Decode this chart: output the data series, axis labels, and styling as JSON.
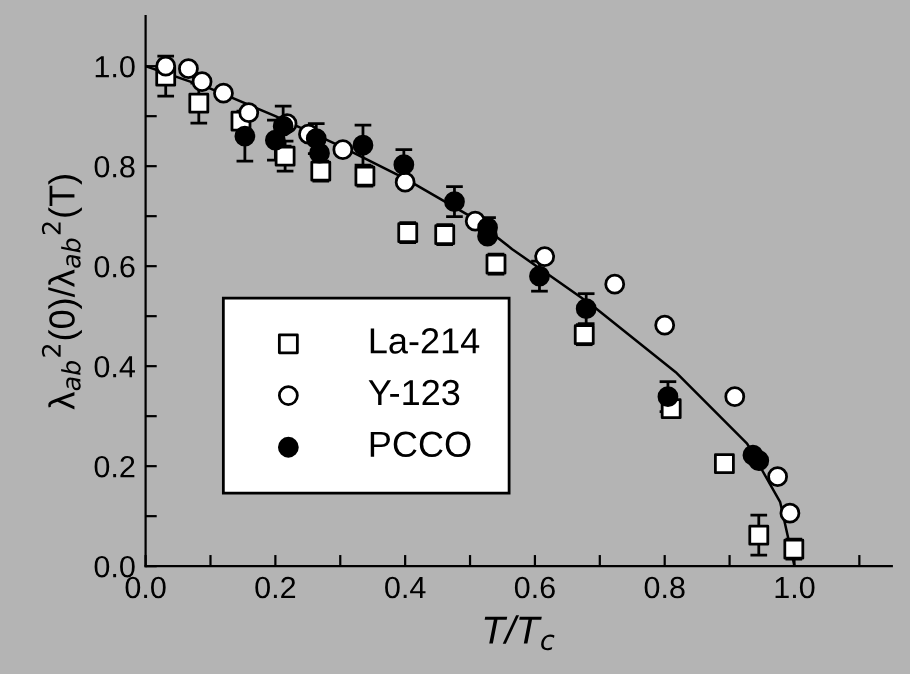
{
  "chart_data": {
    "type": "scatter",
    "xlabel": "T/T$_{c}$",
    "ylabel": "λ$_{ab}$$^{2}$(0)/λ$_{ab}$$^{2}$(T)",
    "xlim": [
      0,
      1.15
    ],
    "ylim": [
      0,
      1.1
    ],
    "xticks": [
      {
        "value": 0,
        "label": "0.0"
      },
      {
        "value": 0.1,
        "label": null
      },
      {
        "value": 0.2,
        "label": "0.2"
      },
      {
        "value": 0.3,
        "label": null
      },
      {
        "value": 0.4,
        "label": "0.4"
      },
      {
        "value": 0.5,
        "label": null
      },
      {
        "value": 0.6,
        "label": "0.6"
      },
      {
        "value": 0.7,
        "label": null
      },
      {
        "value": 0.8,
        "label": "0.8"
      },
      {
        "value": 0.9,
        "label": null
      },
      {
        "value": 1.0,
        "label": "1.0"
      },
      {
        "value": 1.1,
        "label": null
      }
    ],
    "yticks": [
      {
        "value": 0,
        "label": "0.0"
      },
      {
        "value": 0.1,
        "label": null
      },
      {
        "value": 0.2,
        "label": "0.2"
      },
      {
        "value": 0.3,
        "label": null
      },
      {
        "value": 0.4,
        "label": "0.4"
      },
      {
        "value": 0.5,
        "label": null
      },
      {
        "value": 0.6,
        "label": "0.6"
      },
      {
        "value": 0.7,
        "label": null
      },
      {
        "value": 0.8,
        "label": "0.8"
      },
      {
        "value": 0.9,
        "label": null
      },
      {
        "value": 1.0,
        "label": "1.0"
      }
    ],
    "legend": "lower left",
    "series": [
      {
        "name": "La-214",
        "marker": "square",
        "color": "#ffffff",
        "x": [
          0.031,
          0.082,
          0.147,
          0.215,
          0.27,
          0.338,
          0.404,
          0.461,
          0.54,
          0.676,
          0.81,
          0.892,
          0.945,
          0.999
        ],
        "values": [
          0.98,
          0.926,
          0.89,
          0.82,
          0.79,
          0.78,
          0.667,
          0.663,
          0.604,
          0.463,
          0.315,
          0.205,
          0.062,
          0.034
        ],
        "errors": [
          0.04,
          0.04,
          null,
          0.03,
          0.02,
          0.02,
          0.02,
          0.02,
          0.02,
          0.02,
          null,
          null,
          0.04,
          0.02
        ]
      },
      {
        "name": "Y-123",
        "marker": "circle",
        "color": "#ffffff",
        "x": [
          0.031,
          0.066,
          0.087,
          0.12,
          0.159,
          0.218,
          0.251,
          0.304,
          0.4,
          0.508,
          0.615,
          0.723,
          0.8,
          0.908,
          0.974,
          0.993
        ],
        "values": [
          1.0,
          0.995,
          0.969,
          0.946,
          0.907,
          0.885,
          0.864,
          0.833,
          0.768,
          0.69,
          0.619,
          0.564,
          0.482,
          0.339,
          0.179,
          0.106
        ]
      },
      {
        "name": "PCCO",
        "marker": "circle",
        "color": "#000000",
        "x": [
          0.153,
          0.2,
          0.212,
          0.263,
          0.268,
          0.335,
          0.398,
          0.476,
          0.527,
          0.527,
          0.607,
          0.679,
          0.805,
          0.936,
          0.945
        ],
        "values": [
          0.86,
          0.852,
          0.88,
          0.855,
          0.826,
          0.842,
          0.803,
          0.729,
          0.677,
          0.66,
          0.58,
          0.515,
          0.339,
          0.222,
          0.211
        ],
        "errors": [
          0.05,
          0.04,
          0.04,
          0.03,
          null,
          0.04,
          0.03,
          0.03,
          0.02,
          null,
          0.03,
          0.03,
          0.03,
          null,
          null
        ]
      },
      {
        "type": "line",
        "color": "#000000",
        "x": [
          0,
          0.1,
          0.2,
          0.3,
          0.4,
          0.5,
          0.565,
          0.686,
          0.817,
          0.927,
          0.978,
          1.0
        ],
        "values": [
          1.0,
          0.955,
          0.9,
          0.84,
          0.775,
          0.7,
          0.634,
          0.524,
          0.388,
          0.245,
          0.128,
          0.0
        ]
      }
    ]
  }
}
